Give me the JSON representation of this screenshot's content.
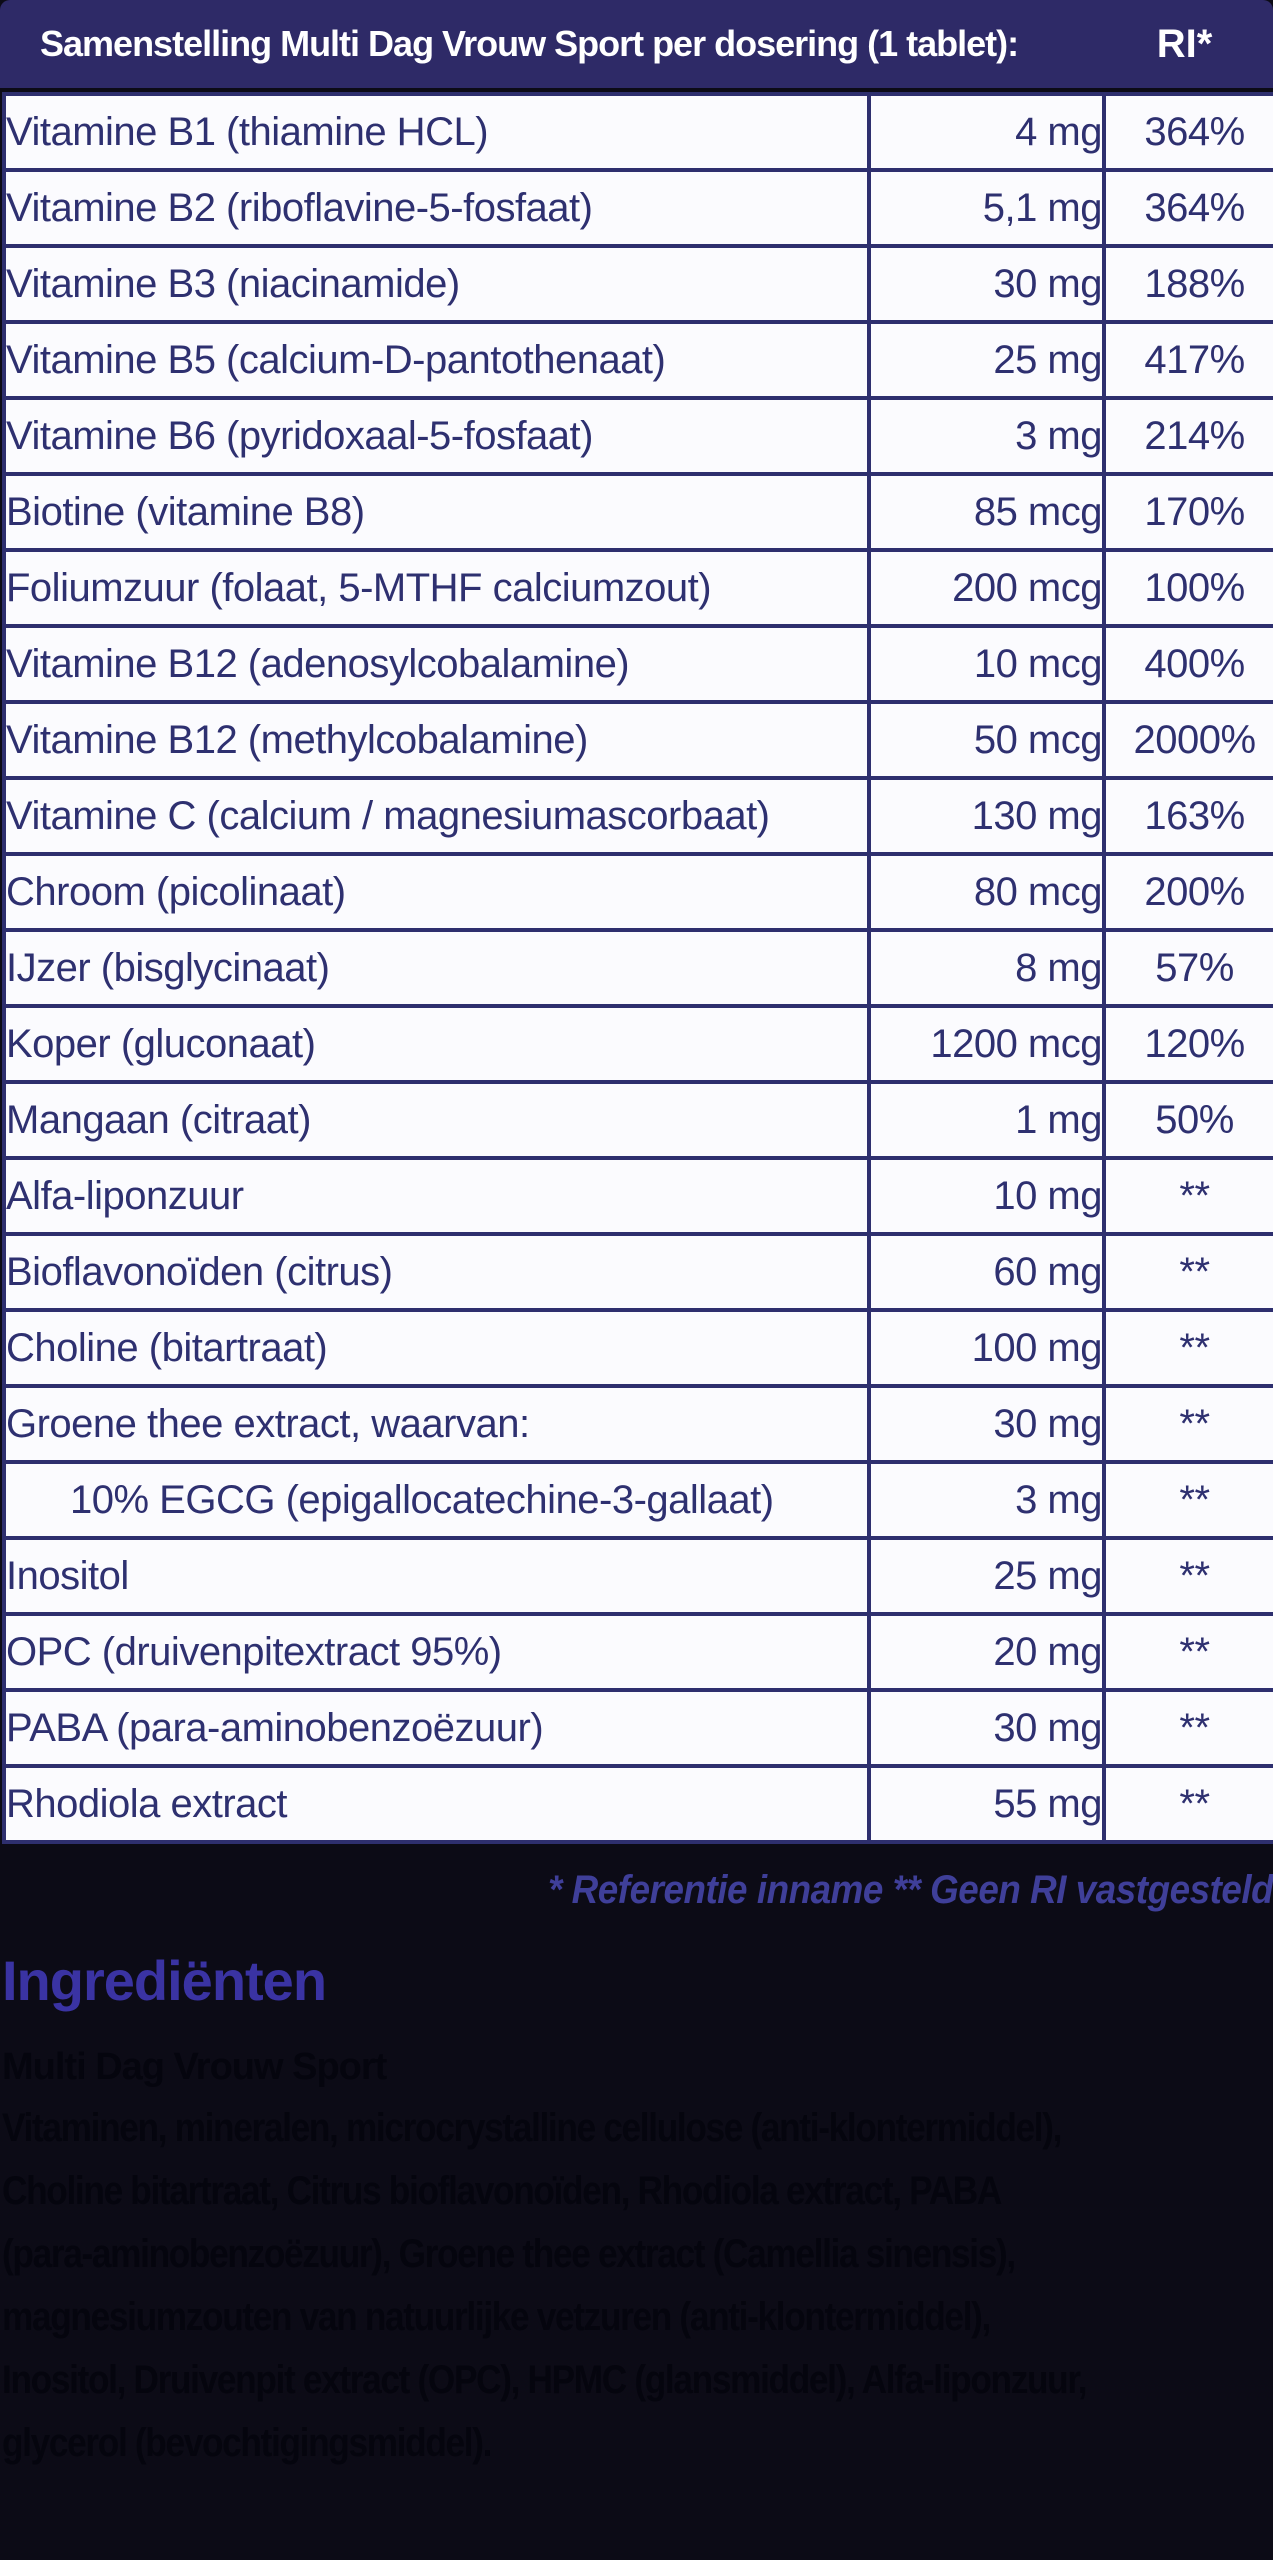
{
  "colors": {
    "background": "#0c0b16",
    "header_bg": "#2e2a67",
    "table_bg": "#fbfbfe",
    "table_border": "#2e2f6e",
    "table_text": "#2e3070",
    "footnote_text": "#3f3f99",
    "heading_text": "#3a33a3",
    "body_text": "#05050e"
  },
  "table": {
    "header": {
      "title": "Samenstelling Multi Dag Vrouw Sport per dosering (1 tablet):",
      "ri_label": "RI*"
    },
    "rows": [
      {
        "name": "Vitamine B1 (thiamine HCL)",
        "amount": "4 mg",
        "ri": "364%",
        "indent": false
      },
      {
        "name": "Vitamine B2 (riboflavine-5-fosfaat)",
        "amount": "5,1 mg",
        "ri": "364%",
        "indent": false
      },
      {
        "name": "Vitamine B3 (niacinamide)",
        "amount": "30 mg",
        "ri": "188%",
        "indent": false
      },
      {
        "name": "Vitamine B5 (calcium-D-pantothenaat)",
        "amount": "25 mg",
        "ri": "417%",
        "indent": false
      },
      {
        "name": "Vitamine B6 (pyridoxaal-5-fosfaat)",
        "amount": "3 mg",
        "ri": "214%",
        "indent": false
      },
      {
        "name": "Biotine (vitamine B8)",
        "amount": "85 mcg",
        "ri": "170%",
        "indent": false
      },
      {
        "name": "Foliumzuur (folaat, 5-MTHF calciumzout)",
        "amount": "200 mcg",
        "ri": "100%",
        "indent": false
      },
      {
        "name": "Vitamine B12 (adenosylcobalamine)",
        "amount": "10 mcg",
        "ri": "400%",
        "indent": false
      },
      {
        "name": "Vitamine B12 (methylcobalamine)",
        "amount": "50 mcg",
        "ri": "2000%",
        "indent": false
      },
      {
        "name": "Vitamine C (calcium / magnesiumascorbaat)",
        "amount": "130 mg",
        "ri": "163%",
        "indent": false
      },
      {
        "name": "Chroom (picolinaat)",
        "amount": "80 mcg",
        "ri": "200%",
        "indent": false
      },
      {
        "name": "IJzer (bisglycinaat)",
        "amount": "8 mg",
        "ri": "57%",
        "indent": false
      },
      {
        "name": "Koper (gluconaat)",
        "amount": "1200 mcg",
        "ri": "120%",
        "indent": false
      },
      {
        "name": "Mangaan (citraat)",
        "amount": "1 mg",
        "ri": "50%",
        "indent": false
      },
      {
        "name": "Alfa-liponzuur",
        "amount": "10 mg",
        "ri": "**",
        "indent": false
      },
      {
        "name": "Bioflavonoïden (citrus)",
        "amount": "60 mg",
        "ri": "**",
        "indent": false
      },
      {
        "name": "Choline (bitartraat)",
        "amount": "100 mg",
        "ri": "**",
        "indent": false
      },
      {
        "name": "Groene thee extract, waarvan:",
        "amount": "30 mg",
        "ri": "**",
        "indent": false
      },
      {
        "name": "10% EGCG (epigallocatechine-3-gallaat)",
        "amount": "3 mg",
        "ri": "**",
        "indent": true
      },
      {
        "name": "Inositol",
        "amount": "25 mg",
        "ri": "**",
        "indent": false
      },
      {
        "name": "OPC (druivenpitextract 95%)",
        "amount": "20 mg",
        "ri": "**",
        "indent": false
      },
      {
        "name": "PABA (para-aminobenzoëzuur)",
        "amount": "30 mg",
        "ri": "**",
        "indent": false
      },
      {
        "name": "Rhodiola extract",
        "amount": "55 mg",
        "ri": "**",
        "indent": false
      }
    ]
  },
  "footnote": "* Referentie inname  ** Geen RI vastgesteld",
  "ingredients": {
    "heading": "Ingrediënten",
    "subheading": "Multi Dag Vrouw Sport",
    "body_lines": [
      "Vitaminen, mineralen, microcrystalline cellulose (anti-klontermiddel),",
      "Choline bitartraat, Citrus bioflavonoïden, Rhodiola extract, PABA",
      "(para-aminobenzoëzuur), Groene thee extract (Camellia sinensis),",
      "magnesiumzouten van natuurlijke vetzuren (anti-klontermiddel),",
      "Inositol, Druivenpit extract (OPC), HPMC (glansmiddel), Alfa-liponzuur,",
      "glycerol (bevochtigingsmiddel)."
    ]
  }
}
